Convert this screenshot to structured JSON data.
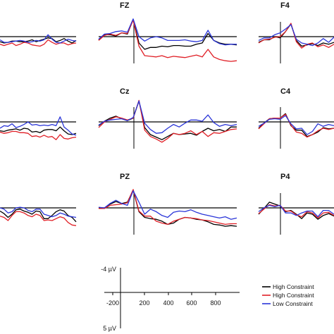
{
  "colors": {
    "high1": "#000000",
    "high2": "#e01f26",
    "low": "#2a35d8"
  },
  "legend": {
    "items": [
      {
        "label": "High Constraint",
        "color": "#000000"
      },
      {
        "label": "High Constraint",
        "color": "#e01f26"
      },
      {
        "label": "Low Constraint",
        "color": "#2a35d8"
      }
    ]
  },
  "scale": {
    "top_label": "-4 µV",
    "bottom_label": "5 µV"
  },
  "chart_data": {
    "type": "line",
    "x_ticks": [
      "-200",
      "200",
      "400",
      "600",
      "800"
    ],
    "panels": [
      {
        "label": "",
        "series": [
          {
            "key": "high1",
            "values": [
              0.8,
              1.0,
              0.9,
              0.7,
              0.7,
              0.8,
              0.8,
              0.7,
              0.5,
              0.8,
              0.6,
              0.4,
              0.2,
              0.3,
              0.8,
              0.6,
              0.3,
              0.7,
              1.0,
              0.6
            ]
          },
          {
            "key": "high2",
            "values": [
              1.2,
              1.4,
              1.2,
              1.0,
              1.4,
              1.2,
              0.9,
              1.0,
              1.3,
              1.4,
              1.5,
              1.2,
              0.5,
              0.9,
              1.2,
              1.0,
              1.0,
              1.3,
              1.1,
              1.0
            ]
          },
          {
            "key": "low",
            "values": [
              0.5,
              0.9,
              0.9,
              0.8,
              0.7,
              0.6,
              0.7,
              0.9,
              0.8,
              0.6,
              0.7,
              0.5,
              -0.3,
              0.4,
              0.9,
              1.0,
              0.7,
              0.4,
              0.6,
              0.7
            ]
          }
        ]
      },
      {
        "label": "FZ",
        "series": [
          {
            "key": "high1",
            "values": [
              0.5,
              -0.3,
              -0.3,
              -0.1,
              -0.6,
              -0.4,
              -2.7,
              1.0,
              2.0,
              1.7,
              1.7,
              1.5,
              1.6,
              1.4,
              1.4,
              1.5,
              1.5,
              1.2,
              1.0,
              -0.5,
              0.6,
              1.0,
              1.2,
              1.2,
              1.3
            ]
          },
          {
            "key": "high2",
            "values": [
              0.6,
              -0.2,
              -0.4,
              -0.2,
              -0.6,
              -0.5,
              -2.6,
              1.5,
              3.0,
              3.1,
              3.2,
              3.0,
              3.3,
              3.1,
              3.2,
              3.3,
              3.1,
              2.9,
              3.2,
              2.0,
              3.2,
              3.6,
              3.8,
              3.9,
              3.8
            ]
          },
          {
            "key": "low",
            "values": [
              0.4,
              -0.4,
              -0.5,
              -0.8,
              -0.9,
              -0.7,
              -2.8,
              0.0,
              0.7,
              0.2,
              0.0,
              0.2,
              0.6,
              0.6,
              0.6,
              0.5,
              0.7,
              0.8,
              0.6,
              -1.0,
              0.6,
              1.1,
              1.3,
              1.2,
              1.2
            ]
          }
        ]
      },
      {
        "label": "F4",
        "series": [
          {
            "key": "high1",
            "values": [
              0.9,
              0.5,
              0.5,
              0.0,
              0.2,
              -0.8,
              -2.0,
              0.6,
              1.5,
              1.3,
              1.1,
              1.4,
              1.0,
              1.2,
              0.9
            ]
          },
          {
            "key": "high2",
            "values": [
              1.0,
              0.5,
              0.4,
              0.1,
              0.0,
              -0.8,
              -2.1,
              0.8,
              1.8,
              1.2,
              1.0,
              1.6,
              1.3,
              1.7,
              1.2
            ]
          },
          {
            "key": "low",
            "values": [
              0.6,
              0.2,
              0.2,
              -0.3,
              -0.6,
              -1.2,
              -1.9,
              0.4,
              1.0,
              1.2,
              1.4,
              1.0,
              0.3,
              0.9,
              0.1
            ]
          }
        ]
      },
      {
        "label": "",
        "series": [
          {
            "key": "high1",
            "values": [
              1.4,
              1.5,
              1.3,
              1.2,
              1.1,
              1.3,
              1.0,
              1.1,
              1.6,
              1.5,
              1.7,
              1.3,
              1.2,
              1.2,
              1.4,
              0.8,
              1.4,
              1.9,
              2.0,
              1.8
            ]
          },
          {
            "key": "high2",
            "values": [
              1.6,
              1.8,
              1.7,
              1.5,
              1.5,
              1.7,
              1.7,
              1.8,
              2.3,
              2.2,
              2.4,
              2.1,
              2.4,
              2.3,
              2.8,
              2.0,
              2.6,
              2.7,
              2.5,
              2.4
            ]
          },
          {
            "key": "low",
            "values": [
              1.0,
              0.6,
              0.7,
              0.3,
              0.9,
              0.7,
              0.4,
              0.0,
              0.5,
              0.4,
              0.6,
              0.5,
              0.6,
              0.4,
              0.6,
              -0.8,
              0.8,
              1.3,
              1.9,
              2.1
            ]
          }
        ]
      },
      {
        "label": "Cz",
        "series": [
          {
            "key": "high1",
            "values": [
              0.6,
              -0.1,
              -0.6,
              -0.9,
              -0.5,
              -0.2,
              -0.6,
              -3.3,
              0.9,
              2.0,
              2.4,
              2.8,
              2.3,
              1.8,
              2.0,
              1.9,
              1.8,
              2.1,
              1.5,
              1.0,
              1.4,
              1.2,
              1.5,
              0.8,
              0.8
            ]
          },
          {
            "key": "high2",
            "values": [
              0.9,
              0.0,
              -0.4,
              -0.8,
              -0.6,
              -0.3,
              -0.6,
              -3.4,
              1.3,
              2.3,
              2.7,
              3.2,
              2.6,
              1.8,
              2.0,
              1.8,
              1.4,
              2.0,
              1.5,
              2.3,
              1.7,
              1.8,
              1.5,
              1.2,
              1.1
            ]
          },
          {
            "key": "low",
            "values": [
              0.5,
              -0.1,
              -0.3,
              -0.4,
              -0.5,
              -0.2,
              -0.7,
              -3.3,
              0.2,
              1.2,
              1.8,
              1.7,
              1.0,
              0.4,
              0.8,
              0.2,
              -0.3,
              -0.3,
              -0.1,
              -1.1,
              0.1,
              0.7,
              0.4,
              0.6,
              0.4
            ]
          }
        ]
      },
      {
        "label": "C4",
        "series": [
          {
            "key": "high1",
            "values": [
              1.0,
              0.2,
              -0.5,
              -0.6,
              -0.6,
              -1.3,
              0.6,
              1.3,
              1.3,
              2.3,
              2.0,
              1.6,
              0.9,
              1.1,
              1.0
            ]
          },
          {
            "key": "high2",
            "values": [
              1.1,
              0.3,
              -0.5,
              -0.6,
              -0.6,
              -1.2,
              0.5,
              1.6,
              1.8,
              2.4,
              2.0,
              1.4,
              1.0,
              1.2,
              1.0
            ]
          },
          {
            "key": "low",
            "values": [
              0.7,
              0.2,
              -0.4,
              -0.5,
              -0.4,
              -1.0,
              0.3,
              1.1,
              1.0,
              2.0,
              1.5,
              0.3,
              0.7,
              0.4,
              0.6
            ]
          }
        ]
      },
      {
        "label": "",
        "series": [
          {
            "key": "high1",
            "values": [
              0.5,
              0.9,
              1.5,
              1.0,
              0.3,
              0.2,
              0.5,
              0.7,
              1.0,
              0.5,
              0.6,
              1.7,
              1.7,
              1.2,
              0.6,
              0.3,
              0.5,
              1.2,
              1.5,
              2.2
            ]
          },
          {
            "key": "high2",
            "values": [
              1.3,
              1.5,
              2.0,
              1.2,
              0.6,
              0.6,
              0.8,
              1.2,
              1.4,
              1.0,
              1.2,
              2.0,
              1.9,
              2.0,
              1.7,
              1.4,
              1.6,
              2.3,
              2.7,
              2.8
            ]
          },
          {
            "key": "low",
            "values": [
              0.0,
              0.2,
              0.8,
              0.6,
              0.0,
              -0.1,
              0.0,
              0.4,
              0.6,
              0.2,
              0.2,
              1.0,
              1.2,
              1.4,
              1.2,
              0.8,
              1.0,
              1.3,
              1.4,
              1.5
            ]
          }
        ]
      },
      {
        "label": "PZ",
        "series": [
          {
            "key": "high1",
            "values": [
              0.0,
              0.0,
              -0.6,
              -1.0,
              -0.7,
              -0.9,
              -2.8,
              0.6,
              1.5,
              1.7,
              1.8,
              2.1,
              2.6,
              2.4,
              1.8,
              1.5,
              1.6,
              1.8,
              1.9,
              2.2,
              2.6,
              2.7,
              2.9,
              2.8,
              2.9
            ]
          },
          {
            "key": "high2",
            "values": [
              0.1,
              0.1,
              -0.4,
              -0.5,
              -0.6,
              -0.8,
              -2.9,
              0.5,
              1.3,
              1.3,
              2.1,
              2.4,
              2.6,
              2.1,
              1.8,
              1.5,
              1.6,
              1.7,
              1.9,
              2.0,
              2.2,
              2.4,
              2.6,
              2.5,
              2.5
            ]
          },
          {
            "key": "low",
            "values": [
              -0.1,
              0.0,
              -0.7,
              -1.2,
              -0.7,
              -0.4,
              -2.7,
              -0.9,
              1.0,
              0.2,
              0.6,
              1.2,
              1.5,
              0.7,
              0.5,
              0.6,
              0.3,
              0.7,
              1.0,
              1.2,
              1.4,
              1.6,
              1.4,
              1.8,
              1.6
            ]
          }
        ]
      },
      {
        "label": "P4",
        "series": [
          {
            "key": "high1",
            "values": [
              1.0,
              0.1,
              -0.9,
              -0.6,
              -0.3,
              0.6,
              0.4,
              1.0,
              1.7,
              0.8,
              1.0,
              1.8,
              1.2,
              0.9,
              1.3
            ]
          },
          {
            "key": "high2",
            "values": [
              0.9,
              0.2,
              -0.5,
              -0.3,
              -0.4,
              0.5,
              0.5,
              1.1,
              1.4,
              0.6,
              0.8,
              1.6,
              0.8,
              0.7,
              1.2
            ]
          },
          {
            "key": "low",
            "values": [
              0.6,
              0.0,
              -0.4,
              -0.2,
              -0.4,
              0.8,
              0.8,
              1.2,
              0.8,
              0.5,
              0.5,
              1.4,
              0.4,
              0.4,
              1.0
            ]
          }
        ]
      }
    ]
  }
}
